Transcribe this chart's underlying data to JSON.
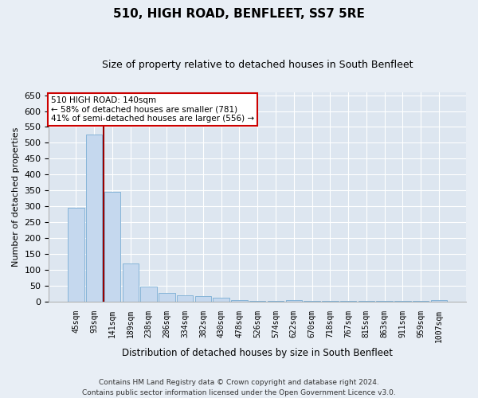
{
  "title": "510, HIGH ROAD, BENFLEET, SS7 5RE",
  "subtitle": "Size of property relative to detached houses in South Benfleet",
  "xlabel": "Distribution of detached houses by size in South Benfleet",
  "ylabel": "Number of detached properties",
  "footer_line1": "Contains HM Land Registry data © Crown copyright and database right 2024.",
  "footer_line2": "Contains public sector information licensed under the Open Government Licence v3.0.",
  "annotation_line1": "510 HIGH ROAD: 140sqm",
  "annotation_line2": "← 58% of detached houses are smaller (781)",
  "annotation_line3": "41% of semi-detached houses are larger (556) →",
  "bar_color": "#c5d8ee",
  "bar_edge_color": "#7aadd4",
  "vline_color": "#990000",
  "bg_color": "#dde6f0",
  "fig_bg_color": "#e8eef5",
  "annotation_box_facecolor": "#ffffff",
  "annotation_box_edgecolor": "#cc0000",
  "categories": [
    "45sqm",
    "93sqm",
    "141sqm",
    "189sqm",
    "238sqm",
    "286sqm",
    "334sqm",
    "382sqm",
    "430sqm",
    "478sqm",
    "526sqm",
    "574sqm",
    "622sqm",
    "670sqm",
    "718sqm",
    "767sqm",
    "815sqm",
    "863sqm",
    "911sqm",
    "959sqm",
    "1007sqm"
  ],
  "values": [
    295,
    525,
    345,
    120,
    48,
    28,
    20,
    17,
    12,
    5,
    2,
    2,
    5,
    2,
    2,
    2,
    2,
    2,
    2,
    2,
    5
  ],
  "ylim": [
    0,
    660
  ],
  "yticks": [
    0,
    50,
    100,
    150,
    200,
    250,
    300,
    350,
    400,
    450,
    500,
    550,
    600,
    650
  ],
  "vline_x": 1.5
}
